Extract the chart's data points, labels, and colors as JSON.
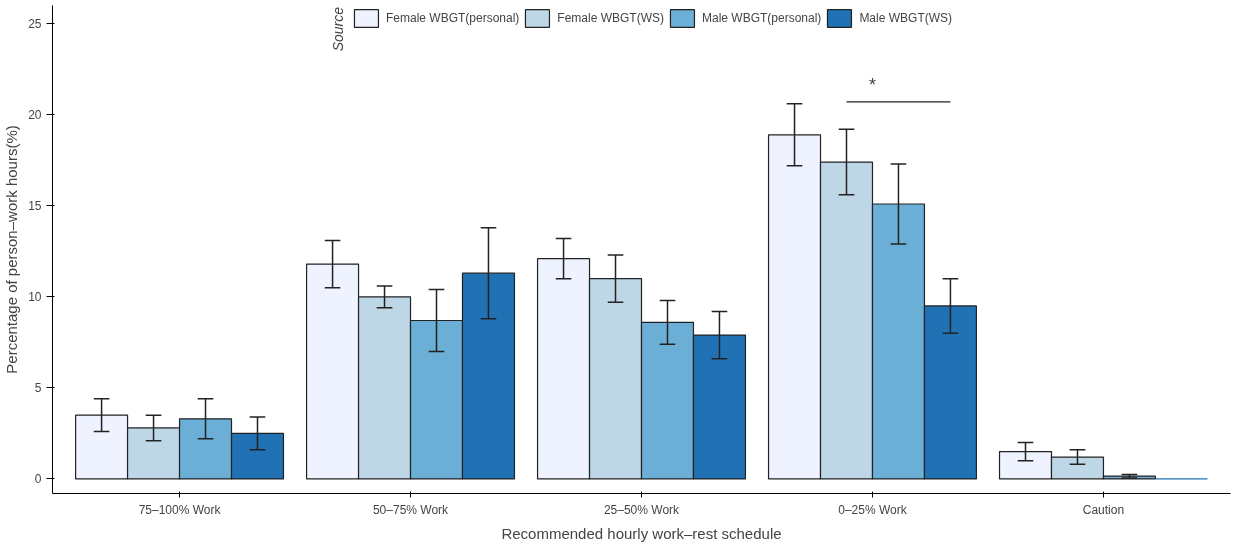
{
  "chart_data": {
    "type": "bar",
    "xlabel": "Recommended hourly work–rest schedule",
    "ylabel": "Percentage of person–work hours(%)",
    "legend_title": "Source",
    "categories": [
      "75–100% Work",
      "50–75% Work",
      "25–50% Work",
      "0–25% Work",
      "Caution"
    ],
    "series": [
      {
        "name": "Female WBGT(personal)",
        "color": "#eff3ff",
        "values": [
          3.5,
          11.8,
          12.1,
          18.9,
          1.5
        ],
        "errors": [
          0.9,
          1.3,
          1.1,
          1.7,
          0.5
        ]
      },
      {
        "name": "Female WBGT(WS)",
        "color": "#bdd7e7",
        "values": [
          2.8,
          10.0,
          11.0,
          17.4,
          1.2
        ],
        "errors": [
          0.7,
          0.6,
          1.3,
          1.8,
          0.4
        ]
      },
      {
        "name": "Male WBGT(personal)",
        "color": "#6baed6",
        "values": [
          3.3,
          8.7,
          8.6,
          15.1,
          0.15
        ],
        "errors": [
          1.1,
          1.7,
          1.2,
          2.2,
          0.1
        ]
      },
      {
        "name": "Male WBGT(WS)",
        "color": "#2171b5",
        "values": [
          2.5,
          11.3,
          7.9,
          9.5,
          0.0
        ],
        "errors": [
          0.9,
          2.5,
          1.3,
          1.5,
          null
        ]
      }
    ],
    "ylim": [
      -0.8,
      26
    ],
    "yticks": [
      0,
      5,
      10,
      15,
      20,
      25
    ],
    "grid": false,
    "legend": "top",
    "annotations": [
      "*"
    ]
  }
}
